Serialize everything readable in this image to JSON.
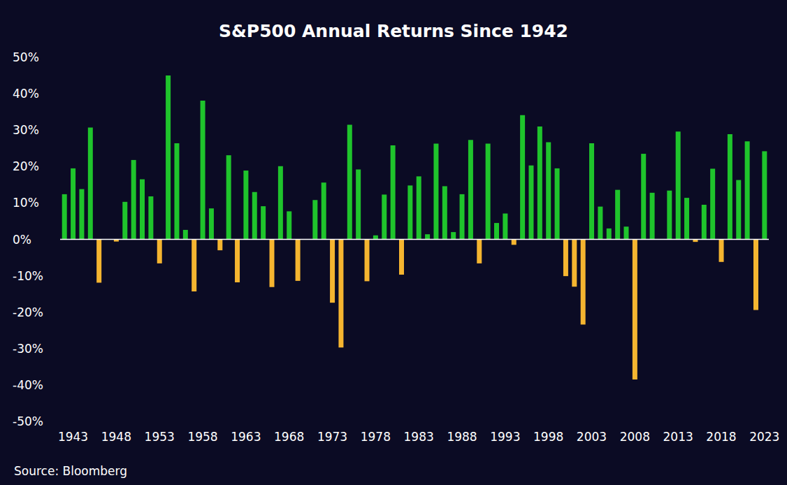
{
  "chart_data": {
    "type": "bar",
    "title": "S&P500 Annual Returns Since 1942",
    "source": "Source: Bloomberg",
    "categories": [
      null,
      "1943",
      null,
      null,
      null,
      null,
      "1948",
      null,
      null,
      null,
      null,
      "1953",
      null,
      null,
      null,
      null,
      "1958",
      null,
      null,
      null,
      null,
      "1963",
      null,
      null,
      null,
      null,
      "1968",
      null,
      null,
      null,
      null,
      "1973",
      null,
      null,
      null,
      null,
      "1978",
      null,
      null,
      null,
      null,
      "1983",
      null,
      null,
      null,
      null,
      "1988",
      null,
      null,
      null,
      null,
      "1993",
      null,
      null,
      null,
      null,
      "1998",
      null,
      null,
      null,
      null,
      "2003",
      null,
      null,
      null,
      null,
      "2008",
      null,
      null,
      null,
      null,
      "2013",
      null,
      null,
      null,
      null,
      "2018",
      null,
      null,
      null,
      null,
      "2023"
    ],
    "values": [
      12.4,
      19.5,
      13.8,
      30.7,
      -11.9,
      0.0,
      -0.6,
      10.3,
      21.8,
      16.5,
      11.8,
      -6.6,
      45.0,
      26.4,
      2.6,
      -14.3,
      38.1,
      8.5,
      -3.0,
      23.1,
      -11.8,
      18.9,
      13.0,
      9.1,
      -13.1,
      20.1,
      7.7,
      -11.4,
      0.1,
      10.8,
      15.6,
      -17.4,
      -29.7,
      31.5,
      19.2,
      -11.5,
      1.1,
      12.3,
      25.8,
      -9.7,
      14.8,
      17.3,
      1.4,
      26.3,
      14.6,
      2.0,
      12.4,
      27.3,
      -6.6,
      26.3,
      4.5,
      7.1,
      -1.5,
      34.1,
      20.3,
      31.0,
      26.7,
      19.5,
      -10.1,
      -13.0,
      -23.4,
      26.4,
      9.0,
      3.0,
      13.6,
      3.5,
      -38.5,
      23.5,
      12.8,
      0.0,
      13.4,
      29.6,
      11.4,
      -0.7,
      9.5,
      19.4,
      -6.2,
      28.9,
      16.3,
      26.9,
      -19.4,
      24.2
    ],
    "colors": [
      "#1fc42c",
      "#1fc42c",
      "#1fc42c",
      "#1fc42c",
      "#f5b530",
      "#1fc42c",
      "#f5b530",
      "#1fc42c",
      "#1fc42c",
      "#1fc42c",
      "#1fc42c",
      "#f5b530",
      "#1fc42c",
      "#1fc42c",
      "#1fc42c",
      "#f5b530",
      "#1fc42c",
      "#1fc42c",
      "#f5b530",
      "#1fc42c",
      "#f5b530",
      "#1fc42c",
      "#1fc42c",
      "#1fc42c",
      "#f5b530",
      "#1fc42c",
      "#1fc42c",
      "#f5b530",
      "#1fc42c",
      "#1fc42c",
      "#1fc42c",
      "#f5b530",
      "#f5b530",
      "#1fc42c",
      "#1fc42c",
      "#f5b530",
      "#1fc42c",
      "#1fc42c",
      "#1fc42c",
      "#f5b530",
      "#1fc42c",
      "#1fc42c",
      "#1fc42c",
      "#1fc42c",
      "#1fc42c",
      "#1fc42c",
      "#1fc42c",
      "#1fc42c",
      "#f5b530",
      "#1fc42c",
      "#1fc42c",
      "#1fc42c",
      "#f5b530",
      "#1fc42c",
      "#1fc42c",
      "#1fc42c",
      "#1fc42c",
      "#1fc42c",
      "#f5b530",
      "#f5b530",
      "#f5b530",
      "#1fc42c",
      "#1fc42c",
      "#1fc42c",
      "#1fc42c",
      "#1fc42c",
      "#f5b530",
      "#1fc42c",
      "#1fc42c",
      "#1fc42c",
      "#1fc42c",
      "#1fc42c",
      "#1fc42c",
      "#f5b530",
      "#1fc42c",
      "#1fc42c",
      "#f5b530",
      "#1fc42c",
      "#1fc42c",
      "#1fc42c",
      "#f5b530",
      "#1fc42c"
    ],
    "ylim": [
      -50,
      50
    ],
    "yticks": [
      {
        "value": -50,
        "label": "-50%"
      },
      {
        "value": -40,
        "label": "-40%"
      },
      {
        "value": -30,
        "label": "-30%"
      },
      {
        "value": -20,
        "label": "-20%"
      },
      {
        "value": -10,
        "label": "-10%"
      },
      {
        "value": 0,
        "label": "0%"
      },
      {
        "value": 10,
        "label": "10%"
      },
      {
        "value": 20,
        "label": "20%"
      },
      {
        "value": 30,
        "label": "30%"
      },
      {
        "value": 40,
        "label": "40%"
      },
      {
        "value": 50,
        "label": "50%"
      }
    ],
    "grid": false
  }
}
